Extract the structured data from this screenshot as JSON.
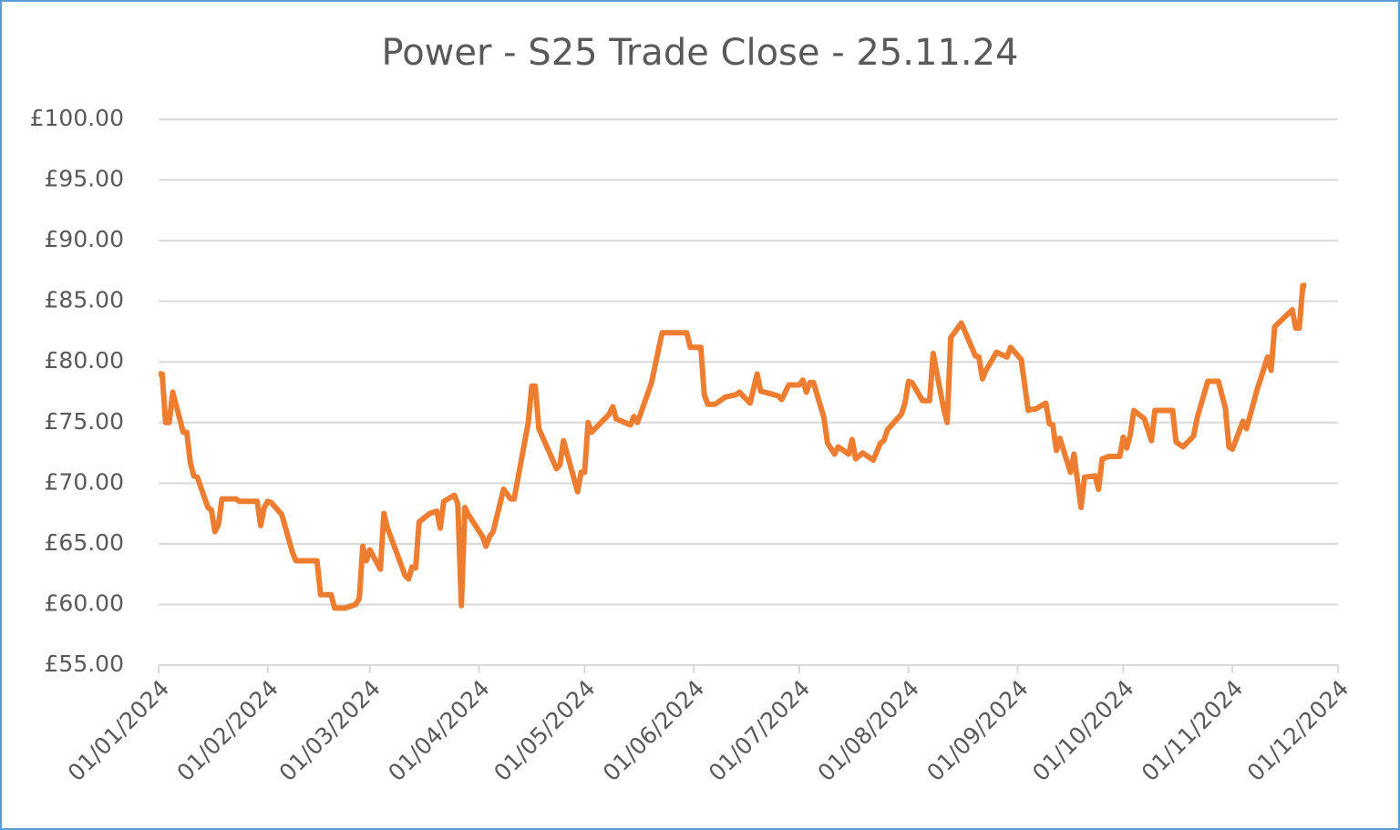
{
  "chart_data": {
    "type": "line",
    "title": "Power - S25 Trade Close - 25.11.24",
    "x": [
      "01/01/2024",
      "02/01/2024",
      "03/01/2024",
      "04/01/2024",
      "05/01/2024",
      "07/01/2024",
      "08/01/2024",
      "09/01/2024",
      "10/01/2024",
      "11/01/2024",
      "12/01/2024",
      "15/01/2024",
      "16/01/2024",
      "17/01/2024",
      "18/01/2024",
      "19/01/2024",
      "23/01/2024",
      "24/01/2024",
      "29/01/2024",
      "30/01/2024",
      "31/01/2024",
      "01/02/2024",
      "02/02/2024",
      "05/02/2024",
      "08/02/2024",
      "09/02/2024",
      "15/02/2024",
      "16/02/2024",
      "19/02/2024",
      "20/02/2024",
      "23/02/2024",
      "26/02/2024",
      "27/02/2024",
      "28/02/2024",
      "29/02/2024",
      "01/03/2024",
      "04/03/2024",
      "05/03/2024",
      "06/03/2024",
      "11/03/2024",
      "12/03/2024",
      "13/03/2024",
      "14/03/2024",
      "15/03/2024",
      "18/03/2024",
      "20/03/2024",
      "21/03/2024",
      "22/03/2024",
      "25/03/2024",
      "26/03/2024",
      "27/03/2024",
      "28/03/2024",
      "29/03/2024",
      "02/04/2024",
      "03/04/2024",
      "04/04/2024",
      "05/04/2024",
      "08/04/2024",
      "10/04/2024",
      "11/04/2024",
      "15/04/2024",
      "16/04/2024",
      "17/04/2024",
      "18/04/2024",
      "23/04/2024",
      "24/04/2024",
      "25/04/2024",
      "29/04/2024",
      "30/04/2024",
      "01/05/2024",
      "02/05/2024",
      "03/05/2024",
      "08/05/2024",
      "09/05/2024",
      "10/05/2024",
      "14/05/2024",
      "15/05/2024",
      "16/05/2024",
      "17/05/2024",
      "20/05/2024",
      "23/05/2024",
      "30/05/2024",
      "31/05/2024",
      "03/06/2024",
      "04/06/2024",
      "05/06/2024",
      "07/06/2024",
      "10/06/2024",
      "13/06/2024",
      "14/06/2024",
      "17/06/2024",
      "19/06/2024",
      "20/06/2024",
      "25/06/2024",
      "26/06/2024",
      "28/06/2024",
      "01/07/2024",
      "02/07/2024",
      "03/07/2024",
      "04/07/2024",
      "05/07/2024",
      "08/07/2024",
      "09/07/2024",
      "11/07/2024",
      "12/07/2024",
      "15/07/2024",
      "16/07/2024",
      "17/07/2024",
      "19/07/2024",
      "22/07/2024",
      "24/07/2024",
      "25/07/2024",
      "26/07/2024",
      "30/07/2024",
      "31/07/2024",
      "01/08/2024",
      "02/08/2024",
      "05/08/2024",
      "07/08/2024",
      "08/08/2024",
      "11/08/2024",
      "12/08/2024",
      "13/08/2024",
      "16/08/2024",
      "20/08/2024",
      "21/08/2024",
      "22/08/2024",
      "23/08/2024",
      "26/08/2024",
      "29/08/2024",
      "30/08/2024",
      "02/09/2024",
      "04/09/2024",
      "05/09/2024",
      "06/09/2024",
      "09/09/2024",
      "10/09/2024",
      "11/09/2024",
      "12/09/2024",
      "13/09/2024",
      "16/09/2024",
      "17/09/2024",
      "19/09/2024",
      "20/09/2024",
      "23/09/2024",
      "24/09/2024",
      "25/09/2024",
      "27/09/2024",
      "30/09/2024",
      "01/10/2024",
      "02/10/2024",
      "03/10/2024",
      "04/10/2024",
      "07/10/2024",
      "09/10/2024",
      "10/10/2024",
      "15/10/2024",
      "16/10/2024",
      "18/10/2024",
      "21/10/2024",
      "22/10/2024",
      "25/10/2024",
      "28/10/2024",
      "30/10/2024",
      "31/10/2024",
      "01/11/2024",
      "04/11/2024",
      "05/11/2024",
      "08/11/2024",
      "11/11/2024",
      "12/11/2024",
      "13/11/2024",
      "18/11/2024",
      "19/11/2024",
      "20/11/2024",
      "21/11/2024",
      "22/11/2024"
    ],
    "series": [
      {
        "color": "#ed7d31",
        "values": [
          79.0,
          79.0,
          75.0,
          75.0,
          77.5,
          75.3,
          74.2,
          74.2,
          71.7,
          70.6,
          70.5,
          68.0,
          67.8,
          66.0,
          66.6,
          68.7,
          68.7,
          68.5,
          68.5,
          66.5,
          68.0,
          68.5,
          68.4,
          67.4,
          64.3,
          63.6,
          63.6,
          60.8,
          60.8,
          59.7,
          59.7,
          60.0,
          60.5,
          64.8,
          63.6,
          64.5,
          62.9,
          67.5,
          66.3,
          62.4,
          62.1,
          63.1,
          63.0,
          66.8,
          67.5,
          67.7,
          66.3,
          68.5,
          69.0,
          68.3,
          59.9,
          68.0,
          67.4,
          65.6,
          64.8,
          65.6,
          66.0,
          69.5,
          68.7,
          68.7,
          75.0,
          78.0,
          78.0,
          74.5,
          71.2,
          71.5,
          73.5,
          69.3,
          70.9,
          70.9,
          75.0,
          74.2,
          75.7,
          76.3,
          75.3,
          74.8,
          75.5,
          75.0,
          75.8,
          78.3,
          82.4,
          82.4,
          81.2,
          81.2,
          77.3,
          76.5,
          76.5,
          77.1,
          77.3,
          77.5,
          76.6,
          79.0,
          77.6,
          77.2,
          76.9,
          78.1,
          78.1,
          78.5,
          77.5,
          78.3,
          78.3,
          75.4,
          73.3,
          72.4,
          73.0,
          72.4,
          73.6,
          72.0,
          72.5,
          71.9,
          73.3,
          73.5,
          74.4,
          75.7,
          76.6,
          78.4,
          78.3,
          76.8,
          76.8,
          80.7,
          76.1,
          75.0,
          82.0,
          83.2,
          80.5,
          80.4,
          78.6,
          79.3,
          80.8,
          80.4,
          81.2,
          80.2,
          76.0,
          76.1,
          76.1,
          76.6,
          74.9,
          74.8,
          72.7,
          73.7,
          70.9,
          72.4,
          68.0,
          70.5,
          70.6,
          69.5,
          72.0,
          72.2,
          72.2,
          73.8,
          72.9,
          74.0,
          76.0,
          75.3,
          73.5,
          76.0,
          76.0,
          73.4,
          73.0,
          73.9,
          75.4,
          78.4,
          78.4,
          76.2,
          73.0,
          72.8,
          75.1,
          74.5,
          77.7,
          80.4,
          79.3,
          82.9,
          84.3,
          82.8,
          82.8,
          86.3,
          86.3
        ]
      }
    ],
    "xlim": [
      "01/01/2024",
      "01/12/2024"
    ],
    "xticks": [
      "01/01/2024",
      "01/02/2024",
      "01/03/2024",
      "01/04/2024",
      "01/05/2024",
      "01/06/2024",
      "01/07/2024",
      "01/08/2024",
      "01/09/2024",
      "01/10/2024",
      "01/11/2024",
      "01/12/2024"
    ],
    "ylim": [
      55,
      100
    ],
    "yticks": [
      {
        "value": 55,
        "label": "£55.00"
      },
      {
        "value": 60,
        "label": "£60.00"
      },
      {
        "value": 65,
        "label": "£65.00"
      },
      {
        "value": 70,
        "label": "£70.00"
      },
      {
        "value": 75,
        "label": "£75.00"
      },
      {
        "value": 80,
        "label": "£80.00"
      },
      {
        "value": 85,
        "label": "£85.00"
      },
      {
        "value": 90,
        "label": "£90.00"
      },
      {
        "value": 95,
        "label": "£95.00"
      },
      {
        "value": 100,
        "label": "£100.00"
      }
    ],
    "grid": true
  }
}
